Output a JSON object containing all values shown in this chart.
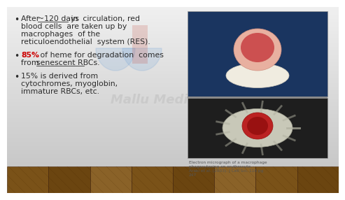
{
  "bg_color": "#dcdcdc",
  "floor_colors": [
    "#7a5218",
    "#6b4510",
    "#8a6228",
    "#7a5218",
    "#6b4510",
    "#8a6228",
    "#7a5218",
    "#6b4510"
  ],
  "bullet1_pre": "After ",
  "bullet1_underline": "~120 days",
  "bullet1_post": " in  circulation, red",
  "bullet1_line2": "blood cells  are taken up by",
  "bullet1_line3": "macrophages  of the",
  "bullet1_line4": "reticuloendothelial  system (RES).",
  "bullet2_red": "85%",
  "bullet2_post": " of heme for degradation  comes",
  "bullet2_line2_pre": "from ",
  "bullet2_line2_ul": "senescent RBCs.",
  "bullet3_line1": "15% is derived from",
  "bullet3_line2": "cytochromes, myoglobin,",
  "bullet3_line3": "immature RBCs, etc.",
  "caption_line1": "Electron micrograph of a macrophage",
  "caption_line2": "phagocytosing an erythrocyte.",
  "caption_line3": "Araki et al. (2003). J Cell Sci, 116 pg",
  "caption_line4": "247",
  "watermark": "Mallu Medicos",
  "text_color": "#2c2c2c",
  "red_color": "#cc0000",
  "caption_color": "#555555",
  "watermark_color": "#c8c8c8",
  "logo_blue": "#6a9fd8",
  "logo_red": "#c0392b"
}
